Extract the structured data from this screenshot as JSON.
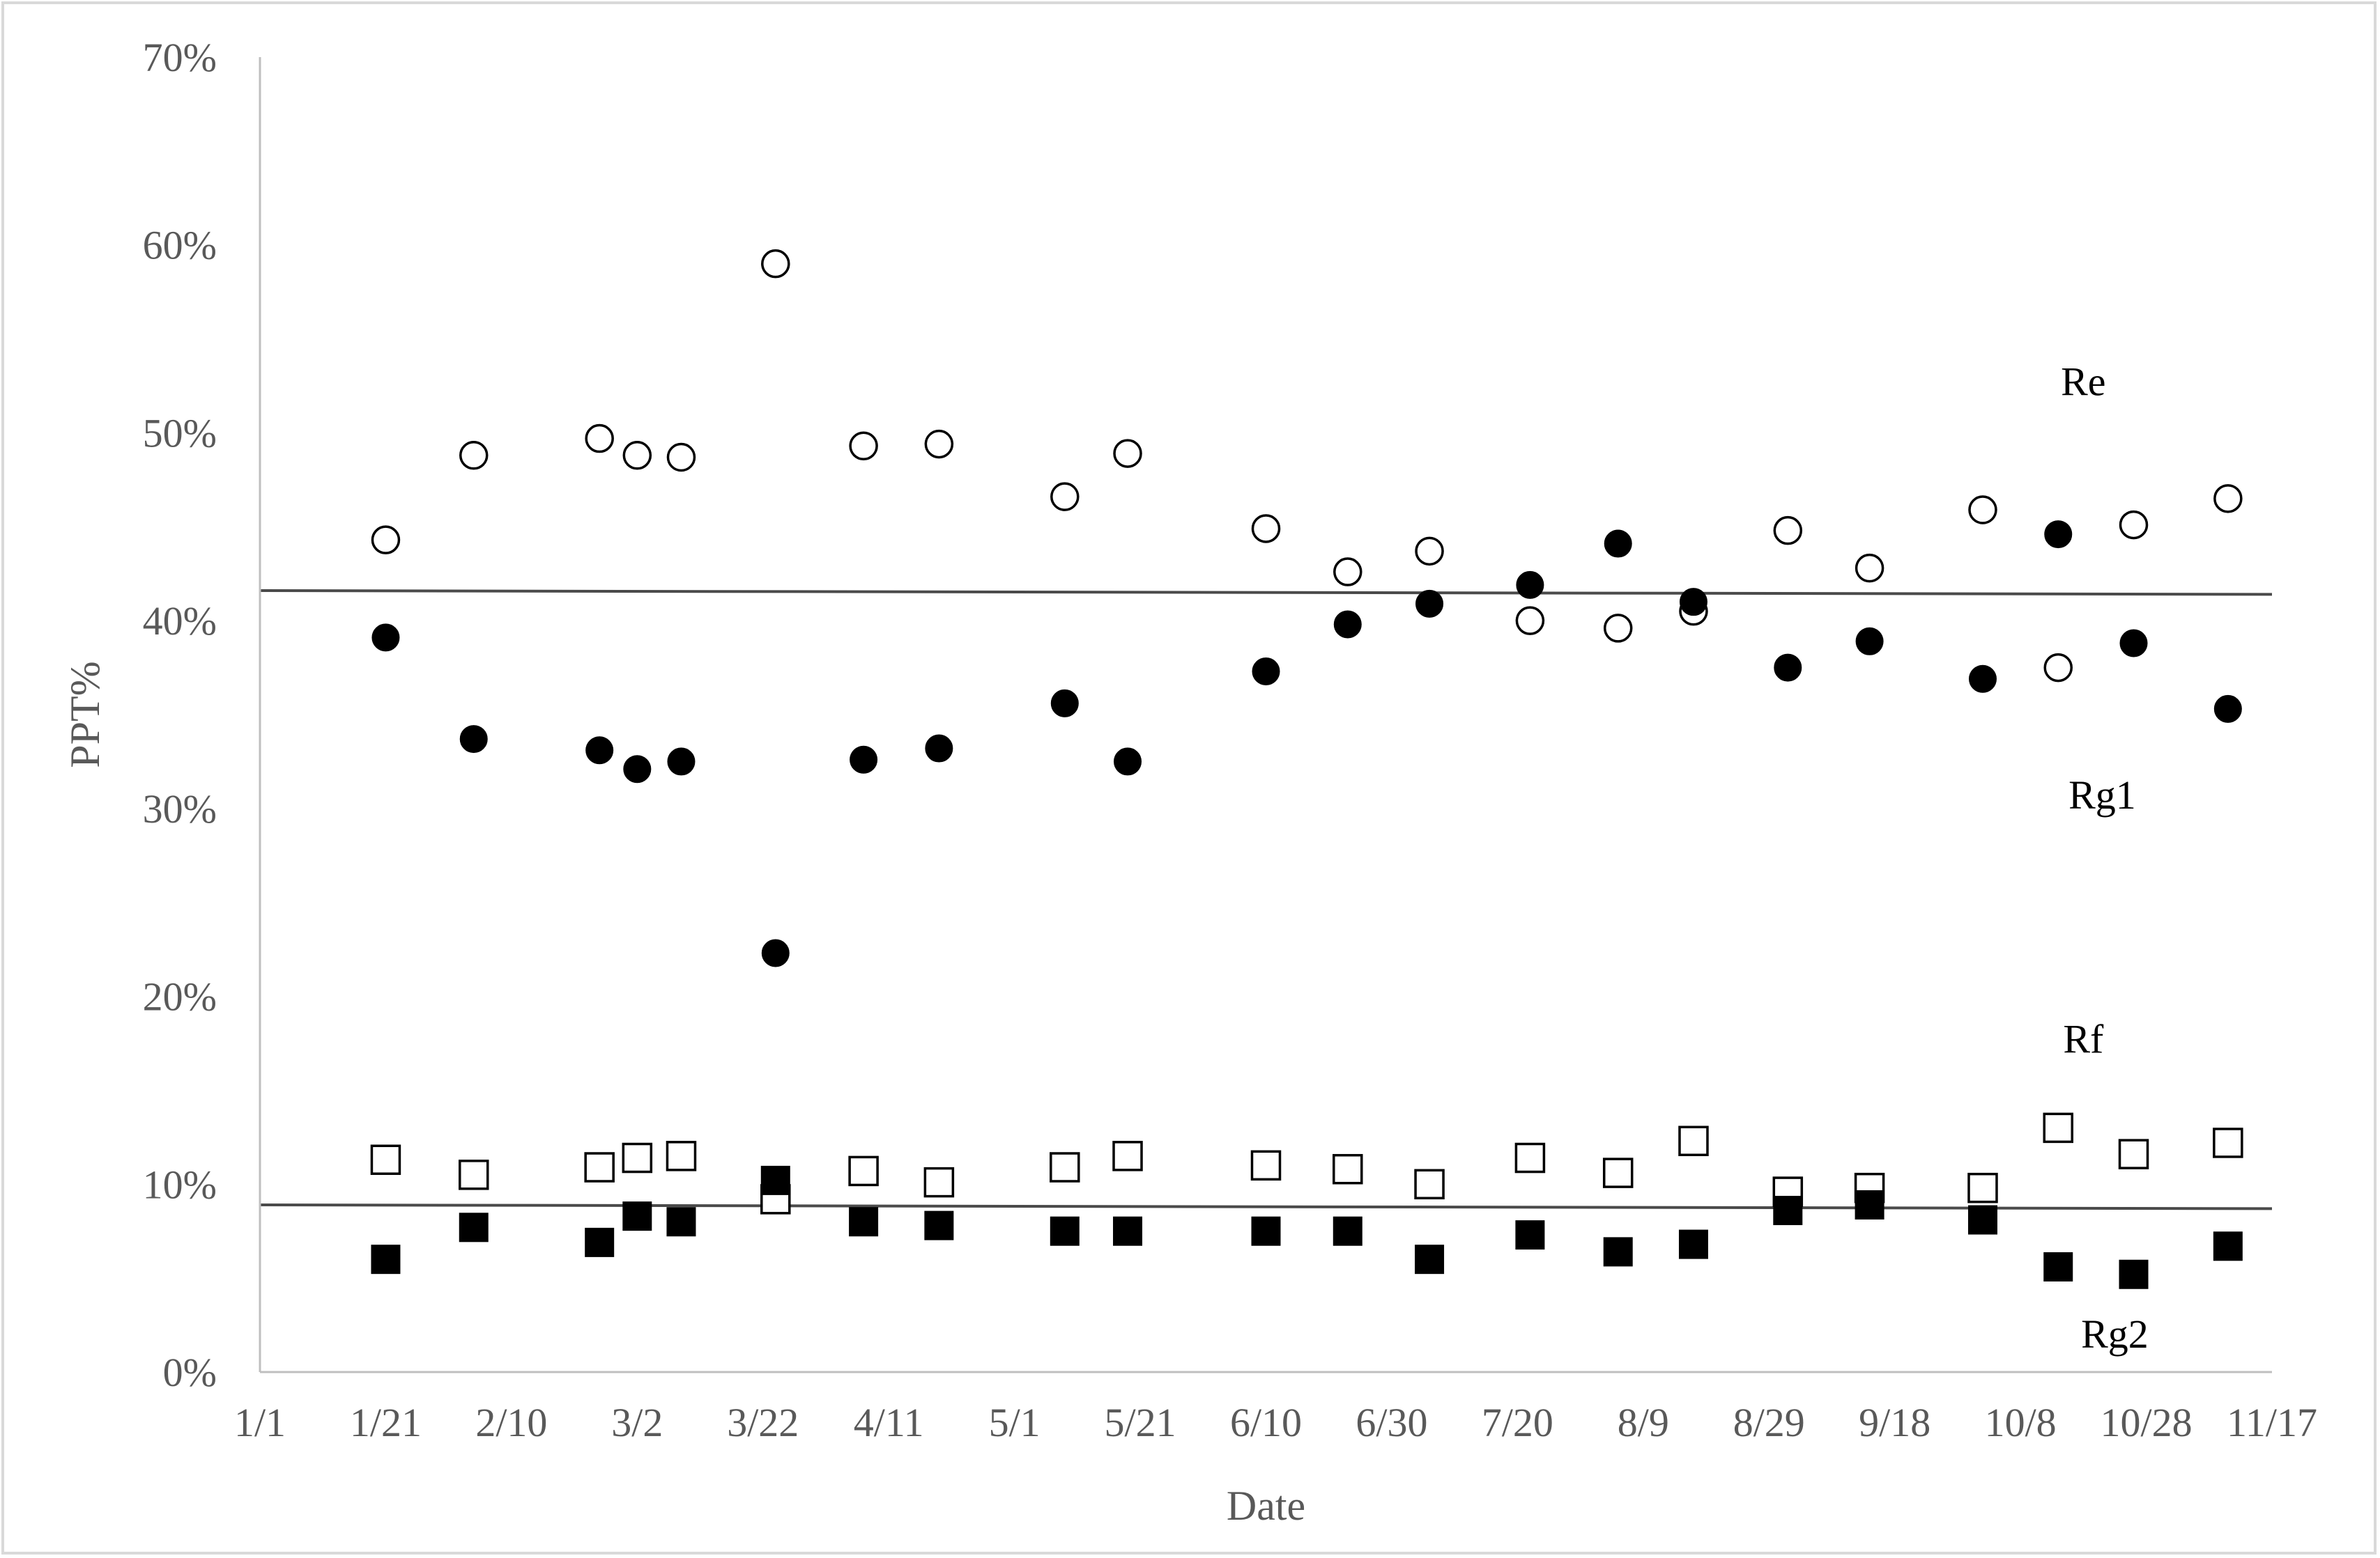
{
  "chart_data": {
    "type": "scatter",
    "title": "",
    "xlabel": "Date",
    "ylabel": "PPT%",
    "x_tick_labels": [
      "1/1",
      "1/21",
      "2/10",
      "3/2",
      "3/22",
      "4/11",
      "5/1",
      "5/21",
      "6/10",
      "6/30",
      "7/20",
      "8/9",
      "8/29",
      "9/18",
      "10/8",
      "10/28",
      "11/17"
    ],
    "x_tick_values": [
      0,
      20,
      40,
      60,
      80,
      100,
      120,
      140,
      160,
      180,
      200,
      220,
      240,
      260,
      280,
      300,
      320
    ],
    "xlim": [
      0,
      320
    ],
    "y_tick_labels": [
      "0%",
      "10%",
      "20%",
      "30%",
      "40%",
      "50%",
      "60%",
      "70%"
    ],
    "y_tick_values": [
      0,
      10,
      20,
      30,
      40,
      50,
      60,
      70
    ],
    "ylim": [
      0,
      70
    ],
    "grid": false,
    "legend": "none",
    "series": [
      {
        "name": "Re",
        "marker": "open-circle",
        "x": [
          20,
          34,
          54,
          60,
          67,
          82,
          96,
          108,
          128,
          138,
          160,
          173,
          186,
          202,
          216,
          228,
          243,
          256,
          274,
          286,
          298,
          313
        ],
        "y": [
          44.3,
          48.8,
          49.7,
          48.8,
          48.7,
          59.0,
          49.3,
          49.4,
          46.6,
          48.9,
          44.9,
          42.6,
          43.7,
          40.0,
          39.6,
          40.5,
          44.8,
          42.8,
          45.9,
          37.5,
          45.1,
          46.5
        ]
      },
      {
        "name": "Rg1",
        "marker": "filled-circle",
        "x": [
          20,
          34,
          54,
          60,
          67,
          82,
          96,
          108,
          128,
          138,
          160,
          173,
          186,
          202,
          216,
          228,
          243,
          256,
          274,
          286,
          298,
          313
        ],
        "y": [
          39.1,
          33.7,
          33.1,
          32.1,
          32.5,
          22.3,
          32.6,
          33.2,
          35.6,
          32.5,
          37.3,
          39.8,
          40.9,
          41.9,
          44.1,
          41.0,
          37.5,
          38.9,
          36.9,
          44.6,
          38.8,
          35.3
        ]
      },
      {
        "name": "Rf",
        "marker": "open-square",
        "x": [
          20,
          34,
          54,
          60,
          67,
          82,
          96,
          108,
          128,
          138,
          160,
          173,
          186,
          202,
          216,
          228,
          243,
          256,
          274,
          286,
          298,
          313
        ],
        "y": [
          11.3,
          10.5,
          10.9,
          11.4,
          11.5,
          9.2,
          10.7,
          10.1,
          10.9,
          11.5,
          11.0,
          10.8,
          10.0,
          11.4,
          10.6,
          12.3,
          9.6,
          9.8,
          9.8,
          13.0,
          11.6,
          12.2
        ]
      },
      {
        "name": "Rg2",
        "marker": "filled-square",
        "x": [
          20,
          34,
          54,
          60,
          67,
          82,
          96,
          108,
          128,
          138,
          160,
          173,
          186,
          202,
          216,
          228,
          243,
          256,
          274,
          286,
          298,
          313
        ],
        "y": [
          6.0,
          7.7,
          6.9,
          8.3,
          8.0,
          10.2,
          8.0,
          7.8,
          7.5,
          7.5,
          7.5,
          7.5,
          6.0,
          7.3,
          6.4,
          6.8,
          8.6,
          8.9,
          8.1,
          5.6,
          5.2,
          6.7
        ]
      }
    ],
    "trendlines": [
      {
        "name": "upper",
        "x": [
          0,
          320
        ],
        "y": [
          41.6,
          41.4
        ]
      },
      {
        "name": "lower",
        "x": [
          0,
          320
        ],
        "y": [
          8.9,
          8.7
        ]
      }
    ],
    "annotations": [
      {
        "text": "Re",
        "x": 290,
        "y": 52.0
      },
      {
        "text": "Rg1",
        "x": 293,
        "y": 30.0
      },
      {
        "text": "Rf",
        "x": 290,
        "y": 17.0
      },
      {
        "text": "Rg2",
        "x": 295,
        "y": 1.3
      }
    ]
  }
}
